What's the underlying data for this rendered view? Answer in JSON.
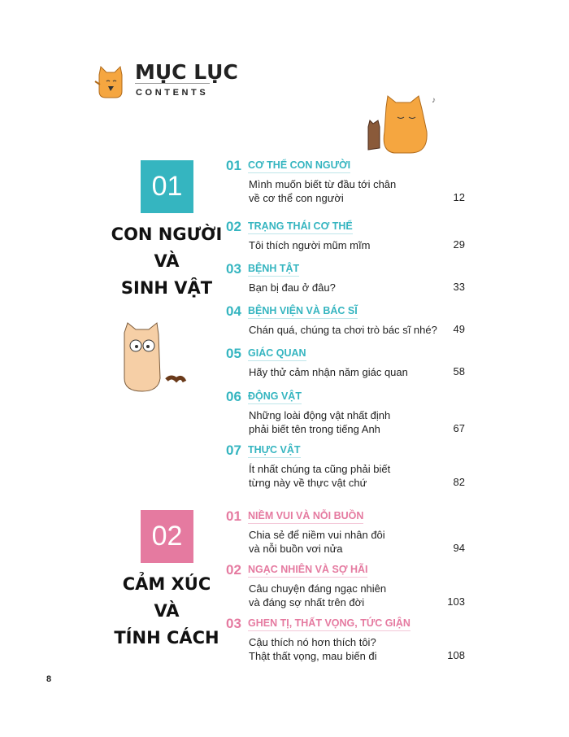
{
  "header": {
    "title": "MỤC LỤC",
    "subtitle": "CONTENTS"
  },
  "colors": {
    "teal": "#35b5c0",
    "pink": "#e57aa0",
    "cat_orange": "#f5a640"
  },
  "sections": [
    {
      "number": "01",
      "title_lines": [
        "CON NGƯỜI",
        "VÀ",
        "SINH VẬT"
      ],
      "entries": [
        {
          "num": "01",
          "heading": "CƠ THỂ CON NGƯỜI",
          "desc": [
            "Mình muốn biết từ đầu tới chân",
            "về cơ thể con người"
          ],
          "page": "12"
        },
        {
          "num": "02",
          "heading": "TRẠNG THÁI CƠ THỂ",
          "desc": [
            "Tôi thích người mũm mĩm"
          ],
          "page": "29"
        },
        {
          "num": "03",
          "heading": "BỆNH TẬT",
          "desc": [
            "Bạn bị đau ở đâu?"
          ],
          "page": "33"
        },
        {
          "num": "04",
          "heading": "BỆNH VIỆN VÀ BÁC SĨ",
          "desc": [
            "Chán quá, chúng ta chơi trò bác sĩ nhé?"
          ],
          "page": "49"
        },
        {
          "num": "05",
          "heading": "GIÁC QUAN",
          "desc": [
            "Hãy thử cảm nhận năm giác quan"
          ],
          "page": "58"
        },
        {
          "num": "06",
          "heading": "ĐỘNG VẬT",
          "desc": [
            "Những loài động vật nhất định",
            "phải biết tên trong tiếng Anh"
          ],
          "page": "67"
        },
        {
          "num": "07",
          "heading": "THỰC VẬT",
          "desc": [
            "Ít nhất chúng ta cũng phải biết",
            "từng này về thực vật chứ"
          ],
          "page": "82"
        }
      ]
    },
    {
      "number": "02",
      "title_lines": [
        "CẢM XÚC",
        "VÀ",
        "TÍNH CÁCH"
      ],
      "entries": [
        {
          "num": "01",
          "heading": "NIỀM VUI VÀ NỖI BUỒN",
          "desc": [
            "Chia sẻ để niềm vui nhân đôi",
            "và nỗi buồn vơi nửa"
          ],
          "page": "94"
        },
        {
          "num": "02",
          "heading": "NGẠC NHIÊN VÀ SỢ HÃI",
          "desc": [
            "Câu chuyện đáng ngạc nhiên",
            "và đáng sợ nhất trên đời"
          ],
          "page": "103"
        },
        {
          "num": "03",
          "heading": "GHEN TỊ, THẤT VỌNG, TỨC GIẬN",
          "desc": [
            "Cậu thích nó hơn thích tôi?",
            "Thật thất vọng, mau biến đi"
          ],
          "page": "108"
        }
      ]
    }
  ],
  "page_number": "8"
}
